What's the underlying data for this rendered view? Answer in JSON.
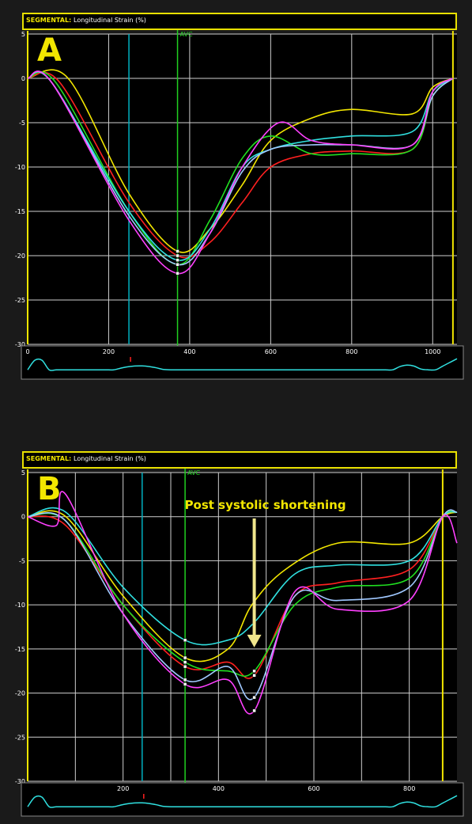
{
  "panels": [
    {
      "header_bold": "SEGMENTAL:",
      "header_text": "Longitudinal Strain (%)",
      "letter": "A",
      "avc_label": "AVC",
      "annotation": ""
    },
    {
      "header_bold": "SEGMENTAL:",
      "header_text": "Longitudinal Strain (%)",
      "letter": "B",
      "avc_label": "AVC",
      "annotation": "Post systolic shortening"
    }
  ],
  "colors": {
    "yellow": "#f2e600",
    "red": "#ff2020",
    "green": "#20e020",
    "cyan": "#30e0e0",
    "lightblue": "#a0c8ff",
    "magenta": "#ff40ff",
    "teal": "#00b0c0",
    "avc": "#20d020"
  },
  "chart_data": [
    {
      "type": "line",
      "title": "",
      "ylim": [
        -30,
        5
      ],
      "xlim": [
        0,
        1060
      ],
      "yticks": [
        5,
        0,
        -5,
        -10,
        -15,
        -20,
        -25,
        -30
      ],
      "xticks": [
        0,
        200,
        400,
        600,
        800,
        1000
      ],
      "xtick_labels": [
        "0",
        "200",
        "400",
        "600",
        "800",
        "1000"
      ],
      "avc_x": 370,
      "teal_marker_x": 250,
      "end_marker_x": 1050,
      "series": [
        {
          "color": "#f2e600",
          "points": [
            [
              0,
              0
            ],
            [
              100,
              0
            ],
            [
              250,
              -13
            ],
            [
              370,
              -19.5
            ],
            [
              450,
              -17
            ],
            [
              530,
              -12
            ],
            [
              600,
              -7
            ],
            [
              700,
              -4.5
            ],
            [
              800,
              -3.5
            ],
            [
              950,
              -4
            ],
            [
              1000,
              -1
            ],
            [
              1050,
              0
            ]
          ]
        },
        {
          "color": "#ff2020",
          "points": [
            [
              0,
              0
            ],
            [
              80,
              -0.5
            ],
            [
              250,
              -14
            ],
            [
              370,
              -20
            ],
            [
              450,
              -18.5
            ],
            [
              530,
              -14
            ],
            [
              600,
              -10
            ],
            [
              700,
              -8.5
            ],
            [
              800,
              -8.2
            ],
            [
              950,
              -8
            ],
            [
              1000,
              -2
            ],
            [
              1050,
              0
            ]
          ]
        },
        {
          "color": "#20e020",
          "points": [
            [
              0,
              0
            ],
            [
              70,
              -0.5
            ],
            [
              250,
              -15
            ],
            [
              370,
              -21
            ],
            [
              450,
              -16
            ],
            [
              530,
              -9
            ],
            [
              600,
              -6.5
            ],
            [
              700,
              -8.5
            ],
            [
              800,
              -8.5
            ],
            [
              950,
              -8
            ],
            [
              1000,
              -2
            ],
            [
              1050,
              0
            ]
          ]
        },
        {
          "color": "#30e0e0",
          "points": [
            [
              0,
              0
            ],
            [
              60,
              -0.5
            ],
            [
              250,
              -15
            ],
            [
              370,
              -20.5
            ],
            [
              450,
              -17
            ],
            [
              530,
              -10
            ],
            [
              600,
              -8
            ],
            [
              700,
              -7
            ],
            [
              800,
              -6.5
            ],
            [
              950,
              -6
            ],
            [
              1000,
              -1.5
            ],
            [
              1050,
              0
            ]
          ]
        },
        {
          "color": "#a0c8ff",
          "points": [
            [
              0,
              0
            ],
            [
              60,
              -0.5
            ],
            [
              250,
              -15.5
            ],
            [
              370,
              -21
            ],
            [
              450,
              -17.5
            ],
            [
              530,
              -10.5
            ],
            [
              600,
              -8
            ],
            [
              700,
              -7.5
            ],
            [
              800,
              -7.5
            ],
            [
              950,
              -7.5
            ],
            [
              1000,
              -2
            ],
            [
              1050,
              0
            ]
          ]
        },
        {
          "color": "#ff40ff",
          "points": [
            [
              0,
              0
            ],
            [
              60,
              -0.5
            ],
            [
              250,
              -16
            ],
            [
              370,
              -22
            ],
            [
              450,
              -17.5
            ],
            [
              530,
              -10
            ],
            [
              620,
              -5
            ],
            [
              700,
              -7
            ],
            [
              800,
              -7.5
            ],
            [
              950,
              -7.5
            ],
            [
              1000,
              -1.5
            ],
            [
              1050,
              0
            ]
          ]
        }
      ]
    },
    {
      "type": "line",
      "title": "",
      "ylim": [
        -30,
        5
      ],
      "xlim": [
        0,
        900
      ],
      "yticks": [
        5,
        0,
        -5,
        -10,
        -15,
        -20,
        -25,
        -30
      ],
      "xticks": [
        200,
        400,
        600,
        800
      ],
      "xtick_labels": [
        "200",
        "400",
        "600",
        "800"
      ],
      "avc_x": 330,
      "teal_marker_x": 240,
      "end_marker_x": 870,
      "psc_x": 475,
      "series": [
        {
          "color": "#f2e600",
          "points": [
            [
              0,
              0
            ],
            [
              80,
              0
            ],
            [
              200,
              -9
            ],
            [
              330,
              -16
            ],
            [
              420,
              -15
            ],
            [
              470,
              -10
            ],
            [
              540,
              -6
            ],
            [
              650,
              -3
            ],
            [
              800,
              -3
            ],
            [
              870,
              0
            ],
            [
              900,
              0.5
            ]
          ]
        },
        {
          "color": "#ff2020",
          "points": [
            [
              0,
              0
            ],
            [
              80,
              -1
            ],
            [
              200,
              -10
            ],
            [
              330,
              -17
            ],
            [
              420,
              -16.5
            ],
            [
              475,
              -18
            ],
            [
              560,
              -9
            ],
            [
              650,
              -7.5
            ],
            [
              800,
              -6
            ],
            [
              870,
              0
            ],
            [
              900,
              0.5
            ]
          ]
        },
        {
          "color": "#20e020",
          "points": [
            [
              0,
              0
            ],
            [
              80,
              -0.5
            ],
            [
              200,
              -10
            ],
            [
              330,
              -16.5
            ],
            [
              420,
              -17.5
            ],
            [
              475,
              -17.5
            ],
            [
              560,
              -10
            ],
            [
              650,
              -8
            ],
            [
              800,
              -7
            ],
            [
              870,
              0
            ],
            [
              900,
              0.5
            ]
          ]
        },
        {
          "color": "#30e0e0",
          "points": [
            [
              0,
              0
            ],
            [
              80,
              0.5
            ],
            [
              200,
              -8
            ],
            [
              330,
              -14
            ],
            [
              420,
              -14
            ],
            [
              475,
              -12
            ],
            [
              560,
              -6.5
            ],
            [
              650,
              -5.5
            ],
            [
              800,
              -5
            ],
            [
              870,
              0
            ],
            [
              900,
              0.5
            ]
          ]
        },
        {
          "color": "#a0c8ff",
          "points": [
            [
              0,
              0
            ],
            [
              80,
              -0.5
            ],
            [
              200,
              -11
            ],
            [
              330,
              -18.5
            ],
            [
              420,
              -17
            ],
            [
              475,
              -20.5
            ],
            [
              560,
              -9
            ],
            [
              650,
              -9.5
            ],
            [
              800,
              -8
            ],
            [
              870,
              0
            ],
            [
              900,
              0.5
            ]
          ]
        },
        {
          "color": "#ff40ff",
          "points": [
            [
              0,
              0
            ],
            [
              60,
              -1
            ],
            [
              80,
              2.5
            ],
            [
              200,
              -11
            ],
            [
              330,
              -19
            ],
            [
              420,
              -18.5
            ],
            [
              475,
              -22
            ],
            [
              560,
              -8.5
            ],
            [
              650,
              -10.5
            ],
            [
              800,
              -9.5
            ],
            [
              870,
              0
            ],
            [
              900,
              -3
            ]
          ]
        }
      ]
    }
  ]
}
